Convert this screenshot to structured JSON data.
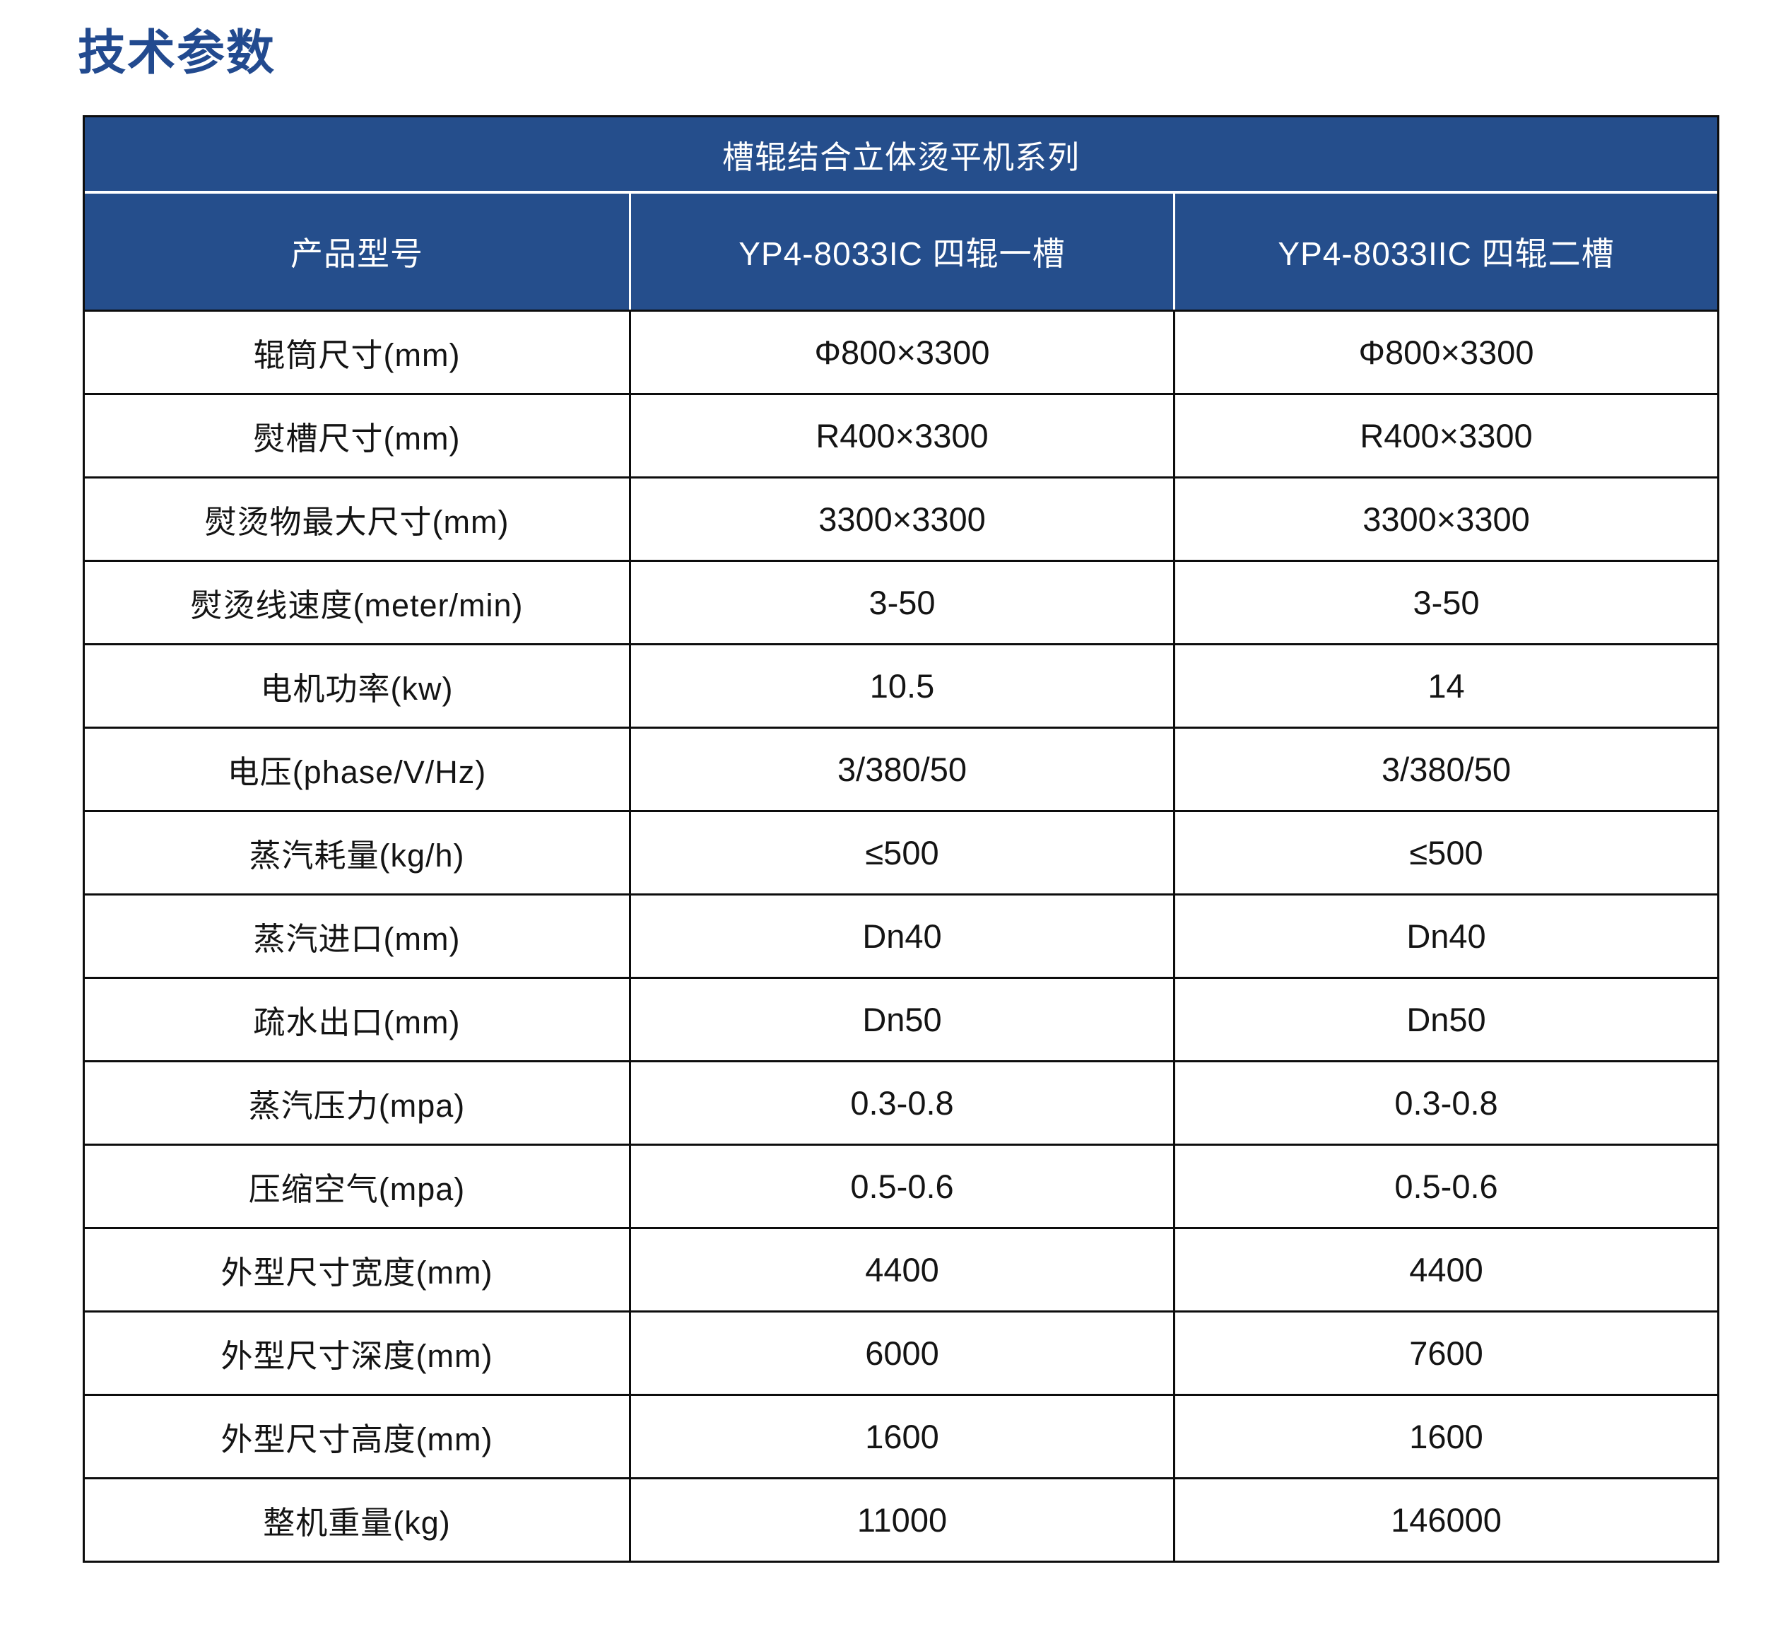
{
  "page": {
    "title": "技术参数"
  },
  "colors": {
    "accent_blue": "#254e8c",
    "title_blue": "#224a8f",
    "border_black": "#0d0d0d",
    "cell_text": "#141414",
    "header_text": "#ffffff",
    "background": "#ffffff"
  },
  "table": {
    "series_title": "槽辊结合立体烫平机系列",
    "columns": [
      "产品型号",
      "YP4-8033IC 四辊一槽",
      "YP4-8033IIC 四辊二槽"
    ],
    "rows": [
      {
        "label": "辊筒尺寸(mm)",
        "v1": "Φ800×3300",
        "v2": "Φ800×3300"
      },
      {
        "label": "熨槽尺寸(mm)",
        "v1": "R400×3300",
        "v2": "R400×3300"
      },
      {
        "label": "熨烫物最大尺寸(mm)",
        "v1": "3300×3300",
        "v2": "3300×3300"
      },
      {
        "label": "熨烫线速度(meter/min)",
        "v1": "3-50",
        "v2": "3-50"
      },
      {
        "label": "电机功率(kw)",
        "v1": "10.5",
        "v2": "14"
      },
      {
        "label": "电压(phase/V/Hz)",
        "v1": "3/380/50",
        "v2": "3/380/50"
      },
      {
        "label": "蒸汽耗量(kg/h)",
        "v1": "≤500",
        "v2": "≤500"
      },
      {
        "label": "蒸汽进口(mm)",
        "v1": "Dn40",
        "v2": "Dn40"
      },
      {
        "label": "疏水出口(mm)",
        "v1": "Dn50",
        "v2": "Dn50"
      },
      {
        "label": "蒸汽压力(mpa)",
        "v1": "0.3-0.8",
        "v2": "0.3-0.8"
      },
      {
        "label": "压缩空气(mpa)",
        "v1": "0.5-0.6",
        "v2": "0.5-0.6"
      },
      {
        "label": "外型尺寸宽度(mm)",
        "v1": "4400",
        "v2": "4400"
      },
      {
        "label": "外型尺寸深度(mm)",
        "v1": "6000",
        "v2": "7600"
      },
      {
        "label": "外型尺寸高度(mm)",
        "v1": "1600",
        "v2": "1600"
      },
      {
        "label": "整机重量(kg)",
        "v1": "11000",
        "v2": "146000"
      }
    ]
  }
}
